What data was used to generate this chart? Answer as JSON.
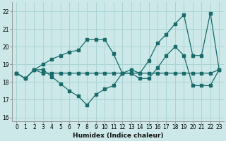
{
  "xlabel": "Humidex (Indice chaleur)",
  "bg_color": "#cce8e8",
  "line_color": "#1a6b6b",
  "grid_color": "#aad4d4",
  "xlim": [
    -0.5,
    23.5
  ],
  "ylim": [
    15.8,
    22.5
  ],
  "yticks": [
    16,
    17,
    18,
    19,
    20,
    21,
    22
  ],
  "xticks": [
    0,
    1,
    2,
    3,
    4,
    5,
    6,
    7,
    8,
    9,
    10,
    11,
    12,
    13,
    14,
    15,
    16,
    17,
    18,
    19,
    20,
    21,
    22,
    23
  ],
  "line1_x": [
    0,
    1,
    2,
    3,
    4,
    5,
    6,
    7,
    8,
    9,
    10,
    11,
    12,
    13,
    14,
    15,
    16,
    17,
    18,
    19,
    20,
    21,
    22,
    23
  ],
  "line1_y": [
    18.5,
    18.2,
    18.7,
    18.5,
    18.5,
    18.5,
    18.5,
    18.5,
    18.5,
    18.5,
    18.5,
    18.5,
    18.5,
    18.5,
    18.5,
    18.5,
    18.5,
    18.5,
    18.5,
    18.5,
    18.5,
    18.5,
    18.5,
    18.7
  ],
  "line2_x": [
    0,
    1,
    2,
    3,
    4,
    5,
    6,
    7,
    8,
    9,
    10,
    11,
    12,
    13,
    14,
    15,
    16,
    17,
    18,
    19,
    20,
    21,
    22,
    23
  ],
  "line2_y": [
    18.5,
    18.2,
    18.7,
    18.7,
    18.3,
    17.9,
    17.5,
    17.2,
    16.7,
    17.3,
    17.6,
    17.8,
    18.5,
    18.5,
    18.2,
    18.2,
    18.8,
    19.5,
    20.0,
    19.5,
    17.8,
    17.8,
    17.8,
    18.7
  ],
  "line3_x": [
    0,
    1,
    2,
    3,
    4,
    5,
    6,
    7,
    8,
    9,
    10,
    11,
    12,
    13,
    14,
    15,
    16,
    17,
    18,
    19,
    20,
    21,
    22,
    23
  ],
  "line3_y": [
    18.5,
    18.2,
    18.7,
    19.0,
    19.3,
    19.5,
    19.7,
    19.8,
    20.4,
    20.4,
    20.4,
    19.6,
    18.5,
    18.7,
    18.5,
    19.2,
    20.2,
    20.7,
    21.3,
    21.8,
    19.5,
    19.5,
    21.9,
    18.7
  ]
}
